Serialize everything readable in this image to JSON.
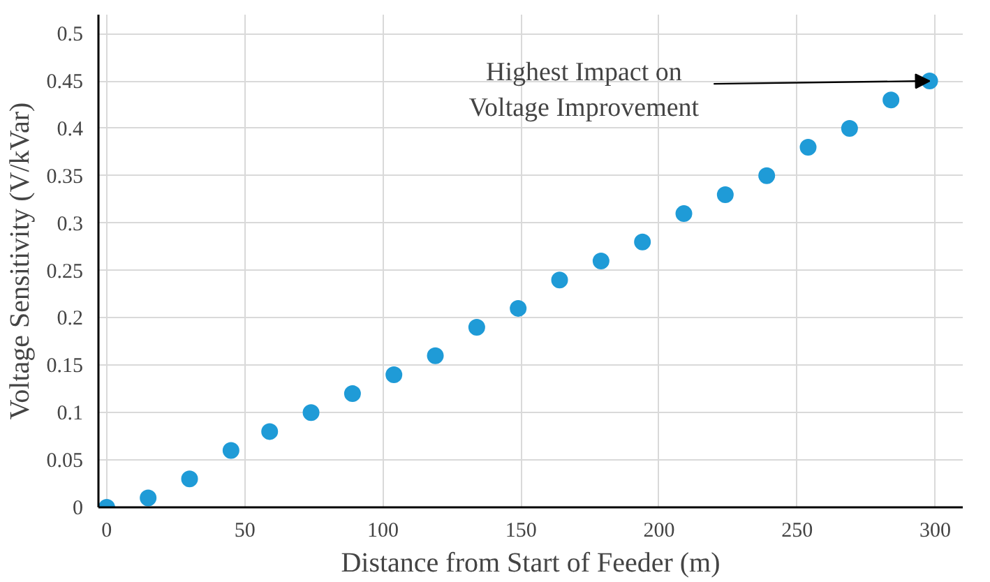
{
  "chart_data": {
    "type": "scatter",
    "xlabel": "Distance from Start of Feeder (m)",
    "ylabel": "Voltage Sensitivity (V/kVar)",
    "x": [
      0,
      15,
      30,
      45,
      59,
      74,
      89,
      104,
      119,
      134,
      149,
      164,
      179,
      194,
      209,
      224,
      239,
      254,
      269,
      284,
      298
    ],
    "series": [
      {
        "color": "#1f9bd7",
        "values": [
          0,
          0.01,
          0.03,
          0.06,
          0.08,
          0.1,
          0.12,
          0.14,
          0.16,
          0.19,
          0.21,
          0.24,
          0.26,
          0.28,
          0.31,
          0.33,
          0.35,
          0.38,
          0.4,
          0.43,
          0.45
        ]
      }
    ],
    "annotations": [
      {
        "text": "Highest Impact on\nVoltage Improvement",
        "x": 298,
        "y": 0.45
      }
    ],
    "xlim": [
      -3,
      310
    ],
    "ylim": [
      0,
      0.52
    ],
    "xticks": [
      0,
      50,
      100,
      150,
      200,
      250,
      300
    ],
    "yticks": [
      0,
      {
        "value": 0.05,
        "label": "0.05"
      },
      {
        "value": 0.1,
        "label": "0.1"
      },
      {
        "value": 0.15,
        "label": "0.15"
      },
      {
        "value": 0.2,
        "label": "0.2"
      },
      {
        "value": 0.25,
        "label": "0.25"
      },
      {
        "value": 0.3,
        "label": "0.3"
      },
      {
        "value": 0.35,
        "label": "0.35"
      },
      {
        "value": 0.4,
        "label": "0.4"
      },
      {
        "value": 0.45,
        "label": "0.45"
      },
      {
        "value": 0.5,
        "label": "0.5"
      }
    ],
    "grid": true,
    "marker": "circle"
  }
}
